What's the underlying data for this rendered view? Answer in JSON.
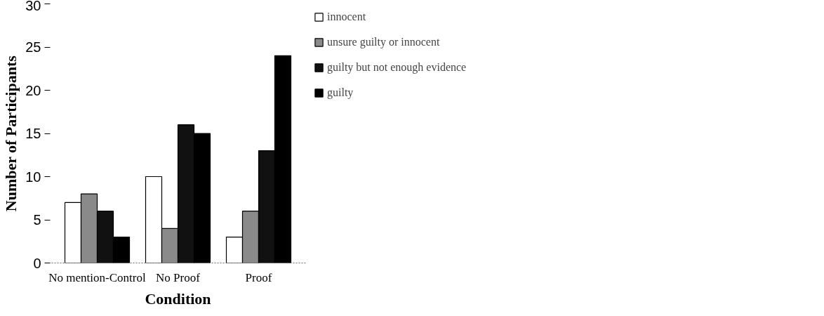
{
  "chart_data": {
    "type": "bar",
    "xlabel": "Condition",
    "ylabel": "Number of Participants",
    "categories": [
      "No mention-Control",
      "No Proof",
      "Proof"
    ],
    "series": [
      {
        "name": "innocent",
        "color": "#ffffff",
        "values": [
          7,
          10,
          3
        ]
      },
      {
        "name": "unsure guilty or innocent",
        "color": "#8a8a8a",
        "values": [
          8,
          4,
          6
        ]
      },
      {
        "name": "guilty but not enough evidence",
        "color": "#111111",
        "values": [
          6,
          16,
          13
        ]
      },
      {
        "name": "guilty",
        "color": "#000000",
        "values": [
          3,
          15,
          24
        ]
      }
    ],
    "ylim": [
      0,
      30
    ],
    "yticks": [
      0,
      5,
      10,
      15,
      20,
      25,
      30
    ],
    "grid": false,
    "legend": "top right"
  }
}
